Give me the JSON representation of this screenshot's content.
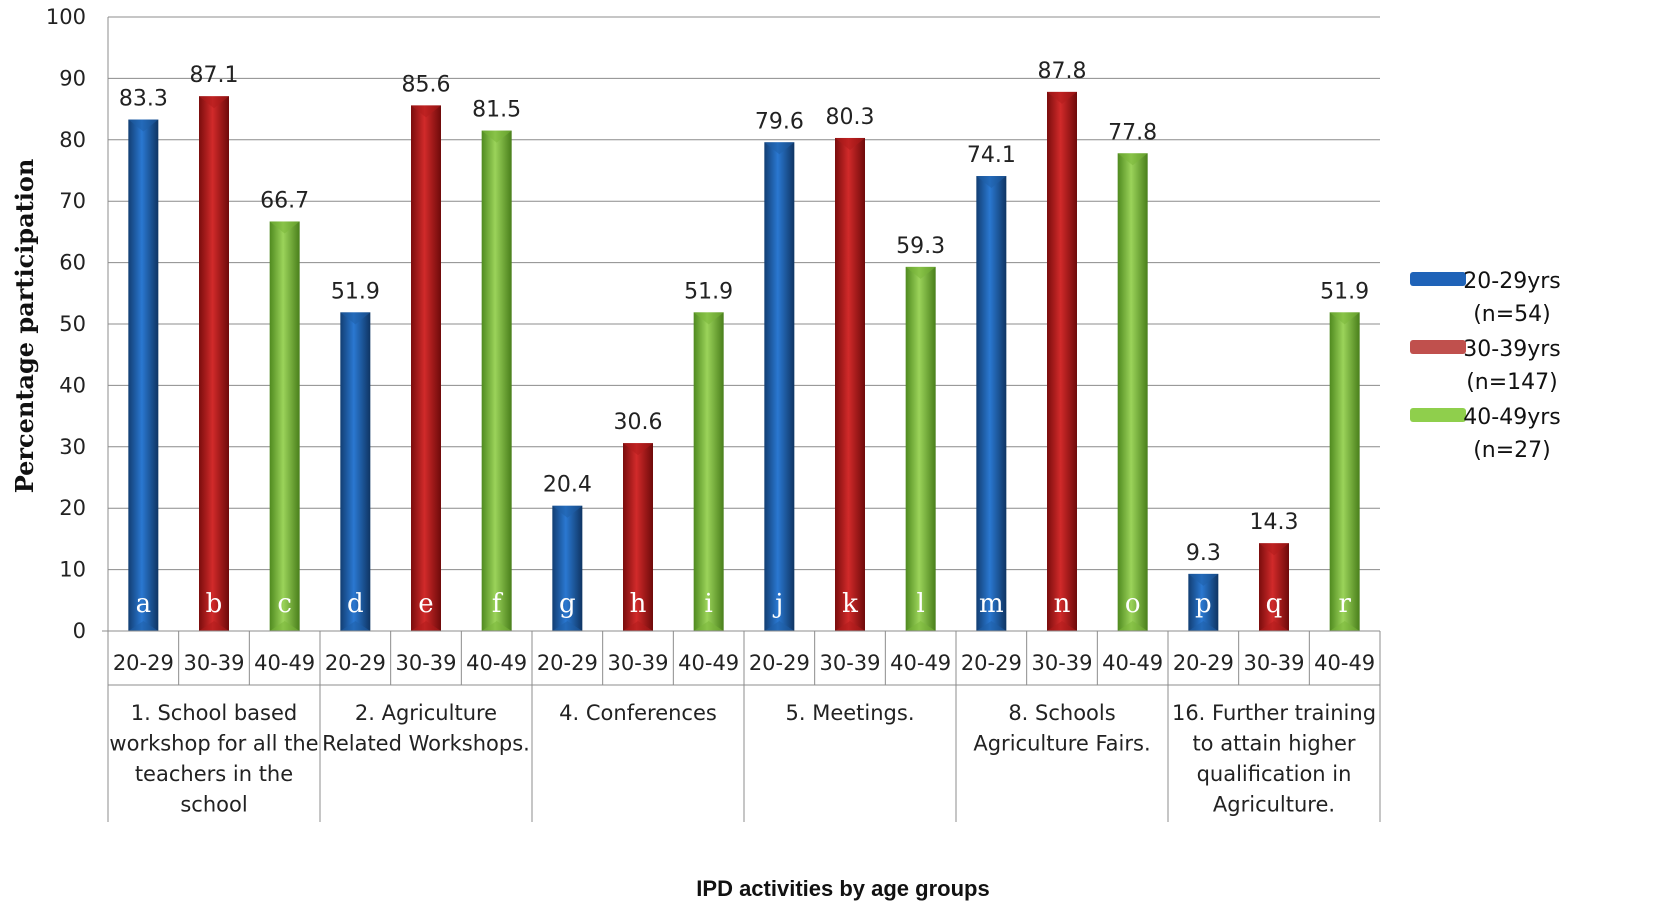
{
  "chart_data": {
    "type": "bar",
    "ylabel": "Percentage participation",
    "xlabel": "IPD activities by age groups",
    "ylim": [
      0,
      100
    ],
    "yticks": [
      0,
      10,
      20,
      30,
      40,
      50,
      60,
      70,
      80,
      90,
      100
    ],
    "grid": true,
    "legend_position": "right",
    "categories": [
      {
        "lines": [
          "1. School based",
          "workshop for all the",
          "teachers in the",
          "school"
        ]
      },
      {
        "lines": [
          "2. Agriculture",
          "Related Workshops."
        ]
      },
      {
        "lines": [
          "4. Conferences"
        ]
      },
      {
        "lines": [
          "5. Meetings."
        ]
      },
      {
        "lines": [
          "8. Schools",
          "Agriculture Fairs."
        ]
      },
      {
        "lines": [
          "16. Further training",
          "to attain higher",
          "qualification in",
          "Agriculture."
        ]
      }
    ],
    "age_groups": [
      "20-29",
      "30-39",
      "40-49"
    ],
    "series": [
      {
        "legend": [
          "20-29yrs",
          "(n=54)"
        ],
        "color": "#1f5fa8",
        "values": [
          83.3,
          51.9,
          20.4,
          79.6,
          74.1,
          9.3
        ],
        "letters": [
          "a",
          "d",
          "g",
          "j",
          "m",
          "p"
        ]
      },
      {
        "legend": [
          "30-39yrs",
          "(n=147)"
        ],
        "color": "#b01c1c",
        "values": [
          87.1,
          85.6,
          30.6,
          80.3,
          87.8,
          14.3
        ],
        "letters": [
          "b",
          "e",
          "h",
          "k",
          "n",
          "q"
        ]
      },
      {
        "legend": [
          "40-49yrs",
          "(n=27)"
        ],
        "color": "#7ab63a",
        "values": [
          66.7,
          81.5,
          51.9,
          59.3,
          77.8,
          51.9
        ],
        "letters": [
          "c",
          "f",
          "i",
          "l",
          "o",
          "r"
        ]
      }
    ]
  }
}
